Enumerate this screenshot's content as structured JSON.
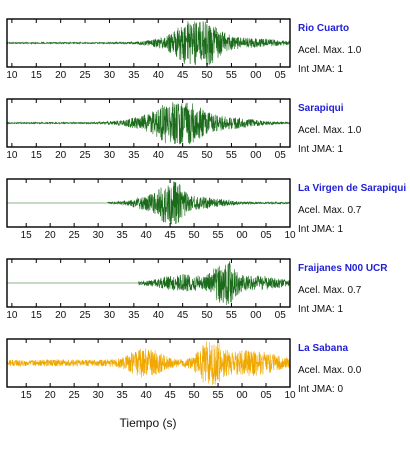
{
  "chart_data": {
    "type": "line",
    "xlabel": "Tiempo (s)",
    "panels": [
      {
        "station": "Rio Cuarto",
        "accel_label": "Acel. Max. 1.0",
        "jma_label": "Int JMA: 1",
        "color": "#1a6b1a",
        "tick_labels": [
          "10",
          "15",
          "20",
          "25",
          "30",
          "35",
          "40",
          "45",
          "50",
          "55",
          "00",
          "05"
        ],
        "xlim": [
          9.0,
          67.0
        ],
        "signal": {
          "noise": 0.03,
          "start": 9.0,
          "bursts": [
            {
              "center": 48.5,
              "amp": 1.0,
              "width": 4.5
            },
            {
              "center": 44.5,
              "amp": 0.3,
              "width": 6.0
            },
            {
              "center": 58.0,
              "amp": 0.2,
              "width": 8.0
            }
          ]
        }
      },
      {
        "station": "Sarapiqui",
        "accel_label": "Acel. Max. 1.0",
        "jma_label": "Int JMA: 1",
        "color": "#1a6b1a",
        "tick_labels": [
          "10",
          "15",
          "20",
          "25",
          "30",
          "35",
          "40",
          "45",
          "50",
          "55",
          "00",
          "05"
        ],
        "xlim": [
          9.0,
          67.0
        ],
        "signal": {
          "noise": 0.03,
          "start": 9.0,
          "bursts": [
            {
              "center": 44.5,
              "amp": 1.0,
              "width": 4.0
            },
            {
              "center": 40.0,
              "amp": 0.35,
              "width": 7.0
            },
            {
              "center": 52.0,
              "amp": 0.3,
              "width": 8.0
            }
          ]
        }
      },
      {
        "station": "La Virgen de Sarapiqui",
        "accel_label": "Acel. Max. 0.7",
        "jma_label": "Int JMA: 1",
        "color": "#1a6b1a",
        "tick_labels": [
          "15",
          "20",
          "25",
          "30",
          "35",
          "40",
          "45",
          "50",
          "55",
          "00",
          "05",
          "10"
        ],
        "xlim": [
          11.0,
          70.0
        ],
        "signal": {
          "noise": 0.04,
          "start": 32.0,
          "bursts": [
            {
              "center": 45.5,
              "amp": 1.0,
              "width": 2.2
            },
            {
              "center": 42.0,
              "amp": 0.35,
              "width": 5.0
            },
            {
              "center": 50.0,
              "amp": 0.25,
              "width": 7.0
            }
          ]
        }
      },
      {
        "station": "Fraijanes N00 UCR",
        "accel_label": "Acel. Max. 0.7",
        "jma_label": "Int JMA: 1",
        "color": "#1a6b1a",
        "tick_labels": [
          "10",
          "15",
          "20",
          "25",
          "30",
          "35",
          "40",
          "45",
          "50",
          "55",
          "00",
          "05"
        ],
        "xlim": [
          9.0,
          67.0
        ],
        "signal": {
          "noise": 0.05,
          "start": 36.0,
          "bursts": [
            {
              "center": 53.5,
              "amp": 1.0,
              "width": 2.5
            },
            {
              "center": 45.0,
              "amp": 0.35,
              "width": 6.0
            },
            {
              "center": 60.0,
              "amp": 0.3,
              "width": 6.0
            }
          ]
        }
      },
      {
        "station": "La Sabana",
        "accel_label": "Acel. Max. 0.0",
        "jma_label": "Int JMA: 0",
        "color": "#f0a800",
        "tick_labels": [
          "15",
          "20",
          "25",
          "30",
          "35",
          "40",
          "45",
          "50",
          "55",
          "00",
          "05",
          "10"
        ],
        "xlim": [
          11.0,
          70.0
        ],
        "signal": {
          "noise": 0.15,
          "start": 11.0,
          "bursts": [
            {
              "center": 53.5,
              "amp": 0.95,
              "width": 3.0
            },
            {
              "center": 40.0,
              "amp": 0.55,
              "width": 4.0
            },
            {
              "center": 62.0,
              "amp": 0.45,
              "width": 6.0
            }
          ]
        }
      }
    ]
  }
}
